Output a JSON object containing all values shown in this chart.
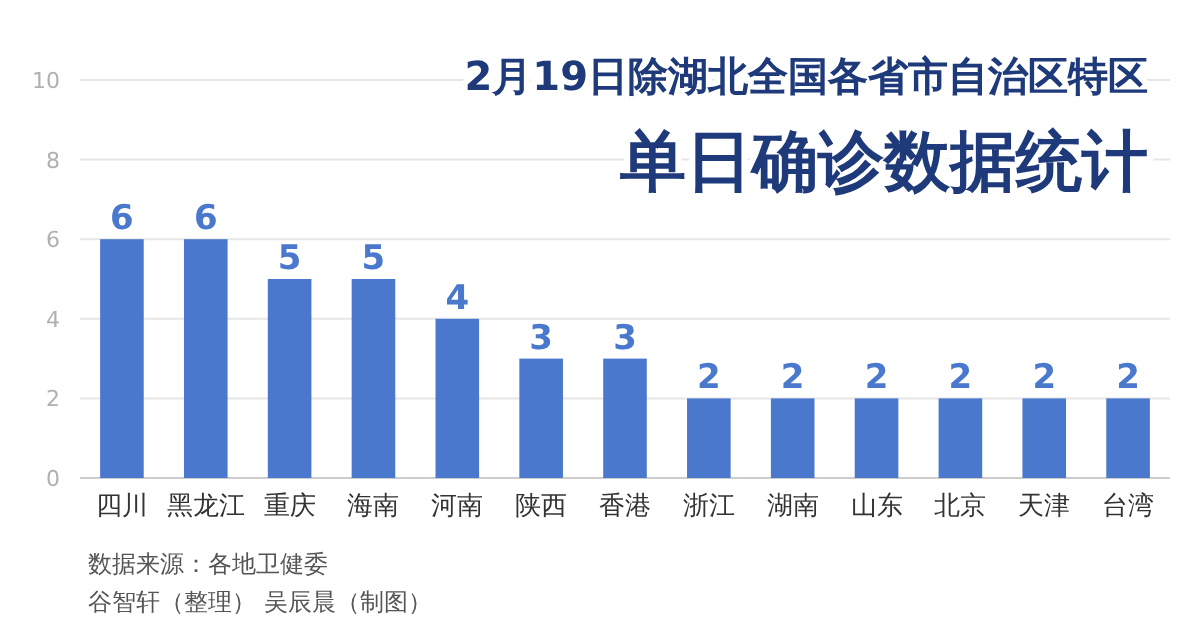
{
  "chart_data": {
    "type": "bar",
    "title": "2月19日除湖北全国各省市自治区特区",
    "subtitle": "单日确诊数据统计",
    "categories": [
      "四川",
      "黑龙江",
      "重庆",
      "海南",
      "河南",
      "陕西",
      "香港",
      "浙江",
      "湖南",
      "山东",
      "北京",
      "天津",
      "台湾"
    ],
    "values": [
      6,
      6,
      5,
      5,
      4,
      3,
      3,
      2,
      2,
      2,
      2,
      2,
      2
    ],
    "color": "#4a78cc",
    "ylim": [
      0,
      10
    ],
    "yticks": [
      0,
      2,
      4,
      6,
      8,
      10
    ],
    "grid": "y",
    "data_labels": true,
    "annotations": [
      "数据来源：各地卫健委",
      "谷智轩（整理） 吴辰晨（制图）"
    ]
  }
}
